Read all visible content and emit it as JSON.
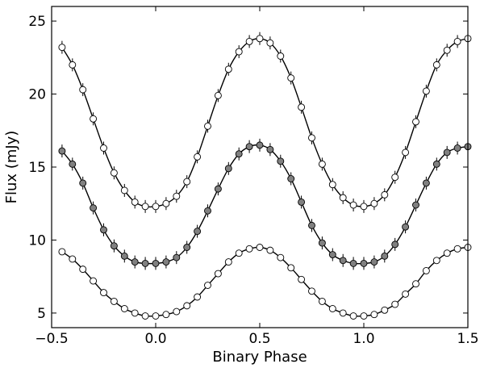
{
  "chart_data": {
    "type": "scatter",
    "title": "",
    "xlabel": "Binary Phase",
    "ylabel": "Flux (mJy)",
    "xlim": [
      -0.5,
      1.5
    ],
    "ylim": [
      4,
      26
    ],
    "xticks": [
      -0.5,
      0.0,
      0.5,
      1.0,
      1.5
    ],
    "xtick_labels": [
      "−0.5",
      "0.0",
      "0.5",
      "1.0",
      "1.5"
    ],
    "yticks": [
      5,
      10,
      15,
      20,
      25
    ],
    "ytick_labels": [
      "5",
      "10",
      "15",
      "20",
      "25"
    ],
    "grid": false,
    "legend": "none",
    "series": [
      {
        "marker": "open-circle",
        "color": "#000000",
        "fill": "#ffffff",
        "has_error_bars": true,
        "model_curve": true,
        "x": [
          -0.45,
          -0.4,
          -0.35,
          -0.3,
          -0.25,
          -0.2,
          -0.15,
          -0.1,
          -0.05,
          0.0,
          0.05,
          0.1,
          0.15,
          0.2,
          0.25,
          0.3,
          0.35,
          0.4,
          0.45,
          0.5,
          0.55,
          0.6,
          0.65,
          0.7,
          0.75,
          0.8,
          0.85,
          0.9,
          0.95,
          1.0,
          1.05,
          1.1,
          1.15,
          1.2,
          1.25,
          1.3,
          1.35,
          1.4,
          1.45,
          1.5
        ],
        "y": [
          23.2,
          22.0,
          20.3,
          18.3,
          16.3,
          14.6,
          13.4,
          12.6,
          12.3,
          12.3,
          12.5,
          13.0,
          14.0,
          15.7,
          17.8,
          19.9,
          21.7,
          22.9,
          23.6,
          23.8,
          23.5,
          22.6,
          21.1,
          19.1,
          17.0,
          15.2,
          13.8,
          12.9,
          12.4,
          12.3,
          12.5,
          13.1,
          14.3,
          16.0,
          18.1,
          20.2,
          22.0,
          23.0,
          23.6,
          23.8
        ]
      },
      {
        "marker": "filled-circle",
        "color": "#000000",
        "fill": "#808080",
        "has_error_bars": true,
        "model_curve": true,
        "x": [
          -0.45,
          -0.4,
          -0.35,
          -0.3,
          -0.25,
          -0.2,
          -0.15,
          -0.1,
          -0.05,
          0.0,
          0.05,
          0.1,
          0.15,
          0.2,
          0.25,
          0.3,
          0.35,
          0.4,
          0.45,
          0.5,
          0.55,
          0.6,
          0.65,
          0.7,
          0.75,
          0.8,
          0.85,
          0.9,
          0.95,
          1.0,
          1.05,
          1.1,
          1.15,
          1.2,
          1.25,
          1.3,
          1.35,
          1.4,
          1.45,
          1.5
        ],
        "y": [
          16.1,
          15.2,
          13.9,
          12.2,
          10.7,
          9.6,
          8.9,
          8.5,
          8.4,
          8.4,
          8.5,
          8.8,
          9.5,
          10.6,
          12.0,
          13.5,
          14.9,
          15.9,
          16.4,
          16.5,
          16.2,
          15.4,
          14.2,
          12.6,
          11.0,
          9.8,
          9.0,
          8.6,
          8.4,
          8.4,
          8.5,
          8.9,
          9.7,
          10.9,
          12.4,
          13.9,
          15.2,
          16.0,
          16.3,
          16.4
        ]
      },
      {
        "marker": "open-circle",
        "color": "#000000",
        "fill": "#ffffff",
        "has_error_bars": false,
        "model_curve": true,
        "x": [
          -0.45,
          -0.4,
          -0.35,
          -0.3,
          -0.25,
          -0.2,
          -0.15,
          -0.1,
          -0.05,
          0.0,
          0.05,
          0.1,
          0.15,
          0.2,
          0.25,
          0.3,
          0.35,
          0.4,
          0.45,
          0.5,
          0.55,
          0.6,
          0.65,
          0.7,
          0.75,
          0.8,
          0.85,
          0.9,
          0.95,
          1.0,
          1.05,
          1.1,
          1.15,
          1.2,
          1.25,
          1.3,
          1.35,
          1.4,
          1.45,
          1.5
        ],
        "y": [
          9.2,
          8.7,
          8.0,
          7.2,
          6.4,
          5.8,
          5.3,
          5.0,
          4.8,
          4.8,
          4.9,
          5.1,
          5.5,
          6.1,
          6.9,
          7.7,
          8.5,
          9.1,
          9.4,
          9.5,
          9.3,
          8.8,
          8.1,
          7.3,
          6.5,
          5.8,
          5.3,
          5.0,
          4.8,
          4.8,
          4.9,
          5.2,
          5.6,
          6.3,
          7.0,
          7.9,
          8.6,
          9.1,
          9.4,
          9.5
        ]
      }
    ]
  }
}
